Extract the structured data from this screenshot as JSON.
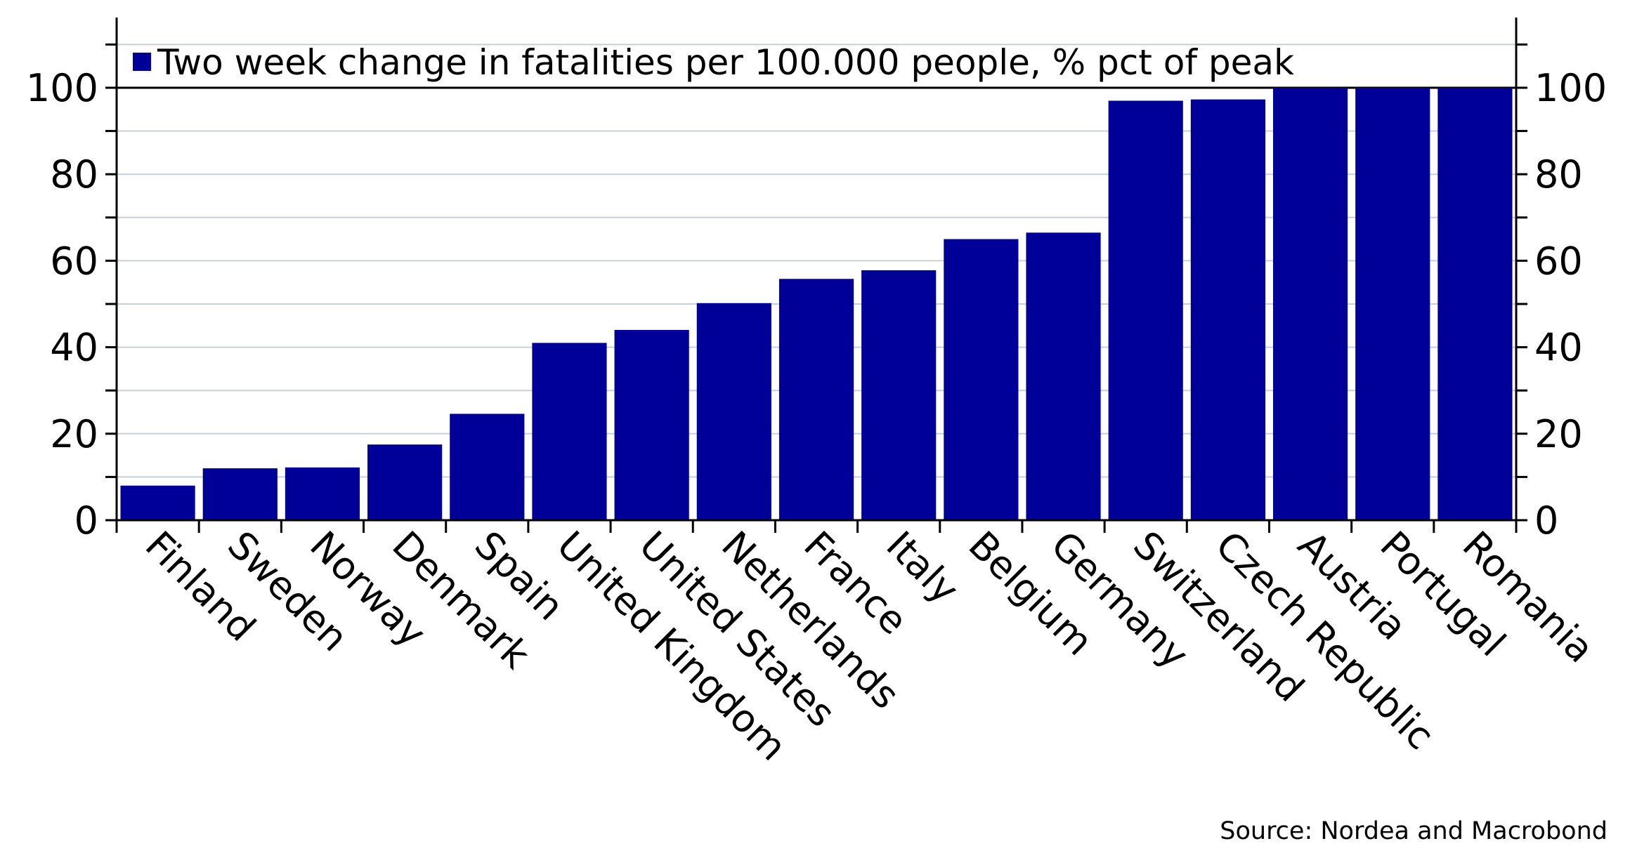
{
  "chart_data": {
    "type": "bar",
    "categories": [
      "Finland",
      "Sweden",
      "Norway",
      "Denmark",
      "Spain",
      "United Kingdom",
      "United States",
      "Netherlands",
      "France",
      "Italy",
      "Belgium",
      "Germany",
      "Switzerland",
      "Czech Republic",
      "Austria",
      "Portugal",
      "Romania"
    ],
    "series": [
      {
        "name": "Two week change in fatalities per 100.000 people, % pct of peak",
        "values": [
          8,
          12,
          12.2,
          17.5,
          24.6,
          41,
          44,
          50.2,
          55.8,
          57.8,
          65,
          66.5,
          97,
          97.3,
          100,
          100,
          100
        ],
        "color": "#000099"
      }
    ],
    "ylim": [
      0,
      100
    ],
    "yticks": [
      0,
      20,
      40,
      60,
      80,
      100
    ],
    "y_axis_both_sides": true,
    "grid": true,
    "legend_position": "top-left",
    "source": "Source: Nordea and Macrobond"
  }
}
